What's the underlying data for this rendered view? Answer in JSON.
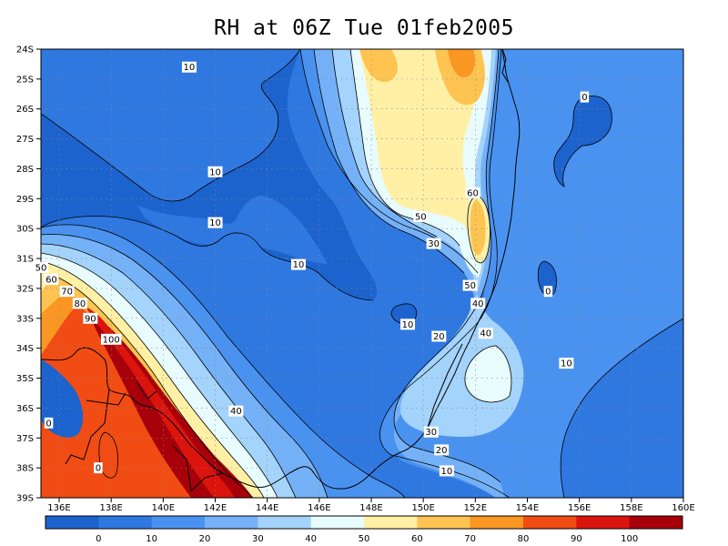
{
  "title": "RH at 06Z Tue 01feb2005",
  "map": {
    "lat_labels": [
      "24S",
      "25S",
      "26S",
      "27S",
      "28S",
      "29S",
      "30S",
      "31S",
      "32S",
      "33S",
      "34S",
      "35S",
      "36S",
      "37S",
      "38S",
      "39S"
    ],
    "lon_labels": [
      "136E",
      "138E",
      "140E",
      "142E",
      "144E",
      "146E",
      "148E",
      "150E",
      "152E",
      "154E",
      "156E",
      "158E",
      "160E"
    ],
    "contour_labels": [
      {
        "text": "10",
        "lon": 141.0,
        "lat": 24.6
      },
      {
        "text": "0",
        "lon": 156.2,
        "lat": 25.6
      },
      {
        "text": "10",
        "lon": 142.0,
        "lat": 28.1
      },
      {
        "text": "60",
        "lon": 151.9,
        "lat": 28.8
      },
      {
        "text": "10",
        "lon": 142.0,
        "lat": 29.8
      },
      {
        "text": "50",
        "lon": 149.9,
        "lat": 29.6
      },
      {
        "text": "30",
        "lon": 150.4,
        "lat": 30.5
      },
      {
        "text": "50",
        "lon": 135.3,
        "lat": 31.3
      },
      {
        "text": "10",
        "lon": 145.2,
        "lat": 31.2
      },
      {
        "text": "60",
        "lon": 135.7,
        "lat": 31.7
      },
      {
        "text": "0",
        "lon": 154.8,
        "lat": 32.1
      },
      {
        "text": "70",
        "lon": 136.3,
        "lat": 32.1
      },
      {
        "text": "50",
        "lon": 151.8,
        "lat": 31.9
      },
      {
        "text": "80",
        "lon": 136.8,
        "lat": 32.5
      },
      {
        "text": "40",
        "lon": 152.1,
        "lat": 32.5
      },
      {
        "text": "90",
        "lon": 137.2,
        "lat": 33.0
      },
      {
        "text": "10",
        "lon": 149.4,
        "lat": 33.2
      },
      {
        "text": "100",
        "lon": 138.0,
        "lat": 33.7
      },
      {
        "text": "40",
        "lon": 152.4,
        "lat": 33.5
      },
      {
        "text": "20",
        "lon": 150.6,
        "lat": 33.6
      },
      {
        "text": "10",
        "lon": 155.5,
        "lat": 34.5
      },
      {
        "text": "40",
        "lon": 142.8,
        "lat": 36.1
      },
      {
        "text": "0",
        "lon": 135.6,
        "lat": 36.5
      },
      {
        "text": "30",
        "lon": 150.3,
        "lat": 36.8
      },
      {
        "text": "20",
        "lon": 150.7,
        "lat": 37.4
      },
      {
        "text": "0",
        "lon": 137.5,
        "lat": 38.0
      },
      {
        "text": "10",
        "lon": 150.9,
        "lat": 38.1
      }
    ]
  },
  "colorbar": {
    "labels": [
      "0",
      "10",
      "20",
      "30",
      "40",
      "50",
      "60",
      "70",
      "80",
      "90",
      "100"
    ],
    "colors": [
      "#1d63cd",
      "#2f78e0",
      "#4a92ef",
      "#75b1f7",
      "#a4d3fb",
      "#e8fbfd",
      "#fff0a6",
      "#fdc451",
      "#fa9622",
      "#f14c14",
      "#dc140e",
      "#a7000a"
    ]
  }
}
